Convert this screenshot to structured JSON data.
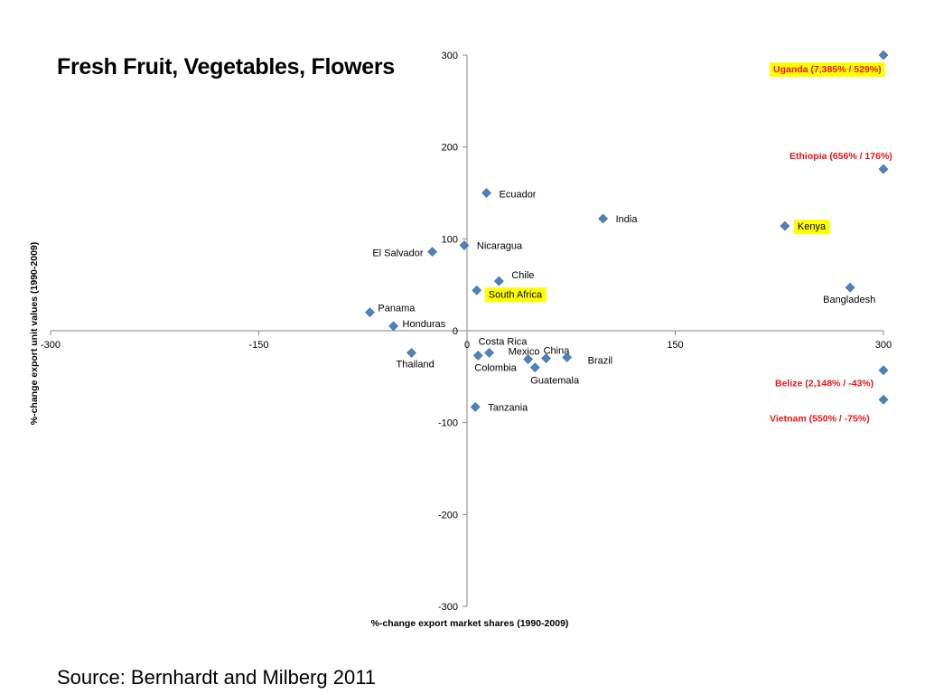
{
  "title": "Fresh Fruit, Vegetables, Flowers",
  "source": "Source: Bernhardt and Milberg 2011",
  "colors": {
    "marker": "#4f81bd",
    "axis": "#868686",
    "highlight": "#ffff00",
    "outlier_text": "#e8141b"
  },
  "chart_data": {
    "type": "scatter",
    "xlabel": "%-change export market shares (1990-2009)",
    "ylabel": "%-change export unit values (1990-2009)",
    "xlim": [
      -300,
      300
    ],
    "ylim": [
      -300,
      300
    ],
    "x_ticks": [
      -300,
      -150,
      0,
      150,
      300
    ],
    "y_ticks": [
      -300,
      -200,
      -100,
      0,
      100,
      200,
      300
    ],
    "grid": false,
    "points": [
      {
        "label": "Uganda (7,385% / 529%)",
        "x": 300,
        "y": 300,
        "style": "red-highlight"
      },
      {
        "label": "Ethiopia (656% / 176%)",
        "x": 300,
        "y": 176,
        "style": "red"
      },
      {
        "label": "Ecuador",
        "x": 14,
        "y": 150,
        "style": "normal"
      },
      {
        "label": "India",
        "x": 98,
        "y": 122,
        "style": "normal"
      },
      {
        "label": "Kenya",
        "x": 229,
        "y": 114,
        "style": "highlight"
      },
      {
        "label": "Nicaragua",
        "x": -2,
        "y": 93,
        "style": "normal"
      },
      {
        "label": "El Salvador",
        "x": -25,
        "y": 86,
        "style": "normal"
      },
      {
        "label": "Chile",
        "x": 23,
        "y": 54,
        "style": "normal"
      },
      {
        "label": "South Africa",
        "x": 7,
        "y": 44,
        "style": "highlight"
      },
      {
        "label": "Bangladesh",
        "x": 276,
        "y": 47,
        "style": "normal"
      },
      {
        "label": "Panama",
        "x": -70,
        "y": 20,
        "style": "normal"
      },
      {
        "label": "Honduras",
        "x": -53,
        "y": 5,
        "style": "normal"
      },
      {
        "label": "Costa Rica",
        "x": 16,
        "y": -24,
        "style": "normal"
      },
      {
        "label": "Colombia",
        "x": 8,
        "y": -27,
        "style": "normal"
      },
      {
        "label": "Mexico",
        "x": 44,
        "y": -31,
        "style": "normal"
      },
      {
        "label": "China",
        "x": 57,
        "y": -30,
        "style": "normal"
      },
      {
        "label": "Brazil",
        "x": 72,
        "y": -29,
        "style": "normal"
      },
      {
        "label": "Guatemala",
        "x": 49,
        "y": -40,
        "style": "normal"
      },
      {
        "label": "Thailand",
        "x": -40,
        "y": -24,
        "style": "normal"
      },
      {
        "label": "Tanzania",
        "x": 6,
        "y": -83,
        "style": "normal"
      },
      {
        "label": "Belize (2,148% / -43%)",
        "x": 300,
        "y": -43,
        "style": "red"
      },
      {
        "label": "Vietnam (550% / -75%)",
        "x": 300,
        "y": -75,
        "style": "red"
      }
    ]
  }
}
